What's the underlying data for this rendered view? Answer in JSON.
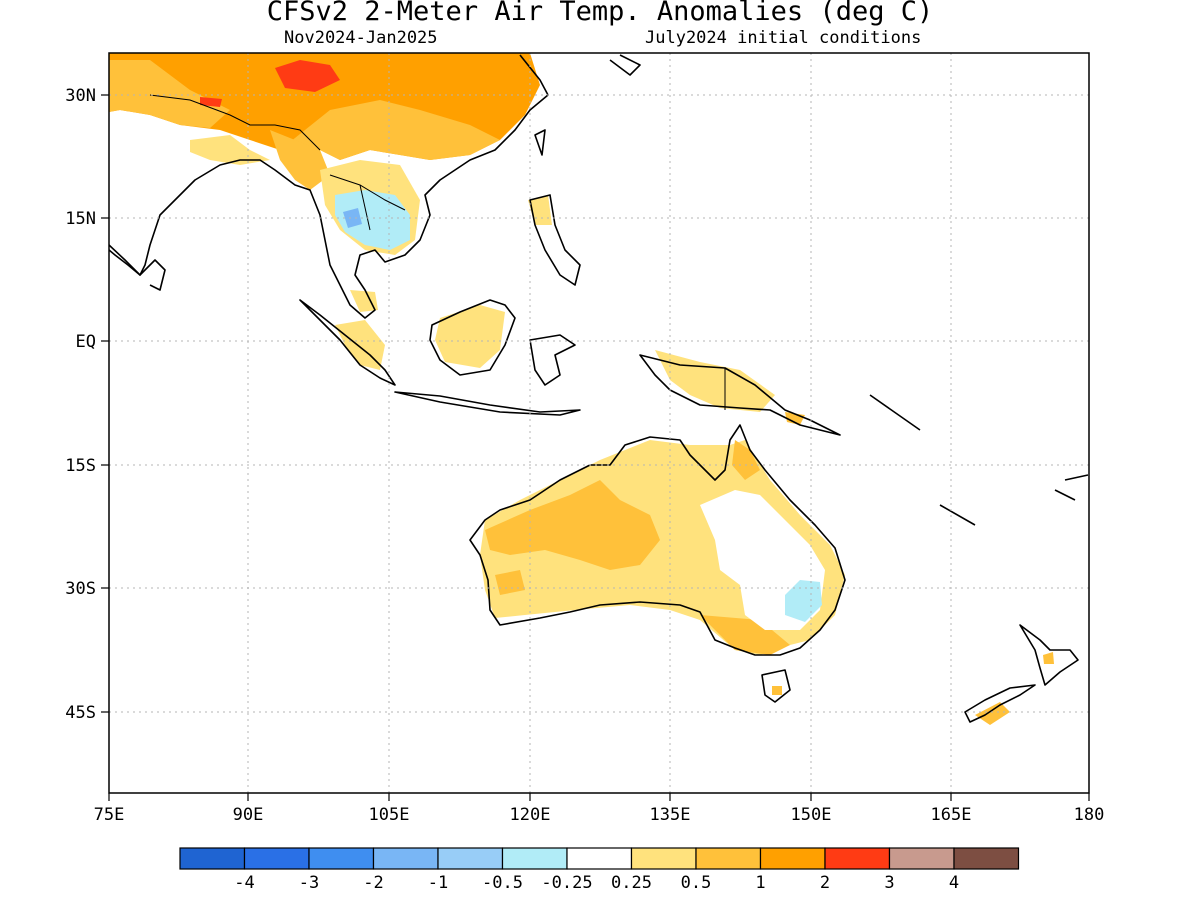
{
  "title": "CFSv2 2-Meter Air Temp. Anomalies (deg C)",
  "subtitle_left": "Nov2024-Jan2025",
  "subtitle_right": "July2024 initial conditions",
  "lat_labels": [
    "30N",
    "15N",
    "EQ",
    "15S",
    "30S",
    "45S"
  ],
  "lon_labels": [
    "75E",
    "90E",
    "105E",
    "120E",
    "135E",
    "150E",
    "165E",
    "180"
  ],
  "colorbar": {
    "colors": [
      "#1f64d2",
      "#2a70e6",
      "#3f8ef0",
      "#79b6f5",
      "#98cdf7",
      "#b1ecf7",
      "#ffffff",
      "#ffe27d",
      "#ffc13a",
      "#ffa000",
      "#ff3b14",
      "#c89a8e",
      "#7d4e42"
    ],
    "labels": [
      "-4",
      "-3",
      "-2",
      "-1",
      "-0.5",
      "-0.25",
      "0.25",
      "0.5",
      "1",
      "2",
      "3",
      "4"
    ]
  }
}
